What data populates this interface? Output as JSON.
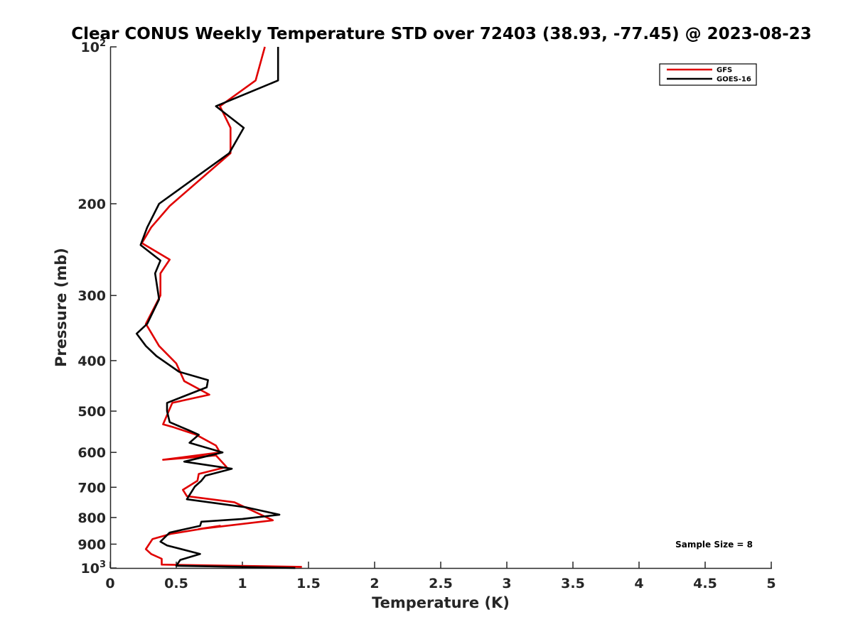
{
  "chart_data": {
    "type": "line",
    "title": "Clear CONUS Weekly Temperature STD over 72403 (38.93, -77.45) @ 2023-08-23",
    "xlabel": "Temperature (K)",
    "ylabel": "Pressure (mb)",
    "xlim": [
      0,
      5
    ],
    "ylim": [
      100,
      1000
    ],
    "y_scale": "log",
    "y_reversed": true,
    "x_ticks": [
      {
        "value": 0,
        "label": "0"
      },
      {
        "value": 0.5,
        "label": "0.5"
      },
      {
        "value": 1,
        "label": "1"
      },
      {
        "value": 1.5,
        "label": "1.5"
      },
      {
        "value": 2,
        "label": "2"
      },
      {
        "value": 2.5,
        "label": "2.5"
      },
      {
        "value": 3,
        "label": "3"
      },
      {
        "value": 3.5,
        "label": "3.5"
      },
      {
        "value": 4,
        "label": "4"
      },
      {
        "value": 4.5,
        "label": "4.5"
      },
      {
        "value": 5,
        "label": "5"
      }
    ],
    "y_ticks": [
      {
        "value": 100,
        "base": "10",
        "exp": "2"
      },
      {
        "value": 200,
        "label": "200"
      },
      {
        "value": 300,
        "label": "300"
      },
      {
        "value": 400,
        "label": "400"
      },
      {
        "value": 500,
        "label": "500"
      },
      {
        "value": 600,
        "label": "600"
      },
      {
        "value": 700,
        "label": "700"
      },
      {
        "value": 800,
        "label": "800"
      },
      {
        "value": 900,
        "label": "900"
      },
      {
        "value": 1000,
        "base": "10",
        "exp": "3"
      }
    ],
    "grid": false,
    "legend_position": "top-right",
    "annotation": "Sample Size = 8",
    "series": [
      {
        "name": "GFS",
        "color": "#e00000",
        "points": [
          [
            1.17,
            100
          ],
          [
            1.1,
            116
          ],
          [
            0.83,
            130
          ],
          [
            0.91,
            143
          ],
          [
            0.91,
            160
          ],
          [
            0.45,
            202
          ],
          [
            0.31,
            222
          ],
          [
            0.24,
            238
          ],
          [
            0.45,
            256
          ],
          [
            0.38,
            272
          ],
          [
            0.38,
            300
          ],
          [
            0.27,
            340
          ],
          [
            0.37,
            375
          ],
          [
            0.5,
            405
          ],
          [
            0.56,
            438
          ],
          [
            0.75,
            465
          ],
          [
            0.47,
            482
          ],
          [
            0.4,
            530
          ],
          [
            0.48,
            537
          ],
          [
            0.65,
            555
          ],
          [
            0.8,
            582
          ],
          [
            0.83,
            600
          ],
          [
            0.4,
            620
          ],
          [
            0.8,
            608
          ],
          [
            0.88,
            640
          ],
          [
            0.67,
            660
          ],
          [
            0.66,
            680
          ],
          [
            0.55,
            708
          ],
          [
            0.58,
            728
          ],
          [
            0.94,
            748
          ],
          [
            1.23,
            810
          ],
          [
            0.67,
            842
          ],
          [
            0.83,
            830
          ],
          [
            0.46,
            860
          ],
          [
            0.32,
            880
          ],
          [
            0.27,
            920
          ],
          [
            0.31,
            940
          ],
          [
            0.39,
            960
          ],
          [
            0.39,
            985
          ],
          [
            1.45,
            995
          ]
        ]
      },
      {
        "name": "GOES-16",
        "color": "#000000",
        "points": [
          [
            1.27,
            100
          ],
          [
            1.27,
            116
          ],
          [
            0.8,
            130
          ],
          [
            1.01,
            143
          ],
          [
            0.9,
            160
          ],
          [
            0.37,
            200
          ],
          [
            0.28,
            222
          ],
          [
            0.23,
            240
          ],
          [
            0.38,
            257
          ],
          [
            0.34,
            272
          ],
          [
            0.37,
            305
          ],
          [
            0.28,
            340
          ],
          [
            0.2,
            355
          ],
          [
            0.27,
            375
          ],
          [
            0.35,
            392
          ],
          [
            0.52,
            420
          ],
          [
            0.74,
            436
          ],
          [
            0.73,
            450
          ],
          [
            0.43,
            482
          ],
          [
            0.43,
            500
          ],
          [
            0.45,
            525
          ],
          [
            0.6,
            545
          ],
          [
            0.67,
            555
          ],
          [
            0.6,
            575
          ],
          [
            0.85,
            600
          ],
          [
            0.56,
            625
          ],
          [
            0.92,
            645
          ],
          [
            0.72,
            665
          ],
          [
            0.69,
            680
          ],
          [
            0.64,
            698
          ],
          [
            0.58,
            738
          ],
          [
            1.03,
            765
          ],
          [
            1.28,
            790
          ],
          [
            1.0,
            805
          ],
          [
            0.69,
            815
          ],
          [
            0.68,
            830
          ],
          [
            0.45,
            855
          ],
          [
            0.38,
            890
          ],
          [
            0.43,
            905
          ],
          [
            0.68,
            940
          ],
          [
            0.53,
            965
          ],
          [
            0.5,
            990
          ],
          [
            1.4,
            1000
          ]
        ]
      }
    ]
  }
}
